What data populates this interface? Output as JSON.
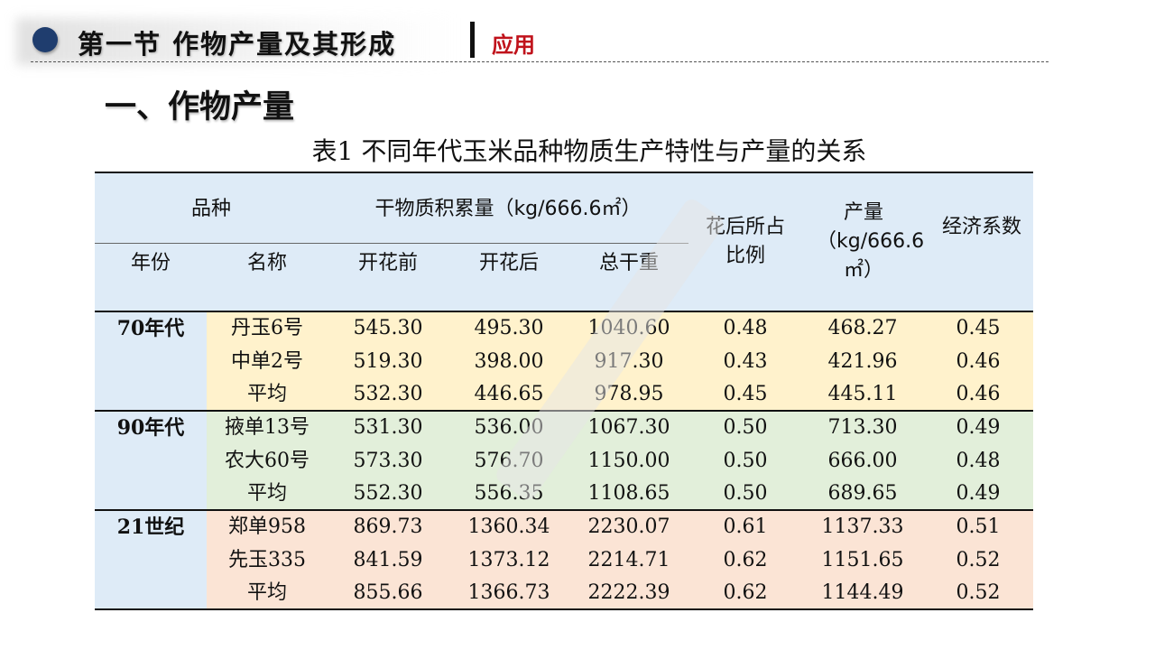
{
  "header": {
    "title": "第一节 作物产量及其形成",
    "subtitle": "应用"
  },
  "section_title": "一、作物产量",
  "table": {
    "caption": "表1  不同年代玉米品种物质生产特性与产量的关系",
    "headers": {
      "variety": "品种",
      "dry_matter": "干物质积累量（kg/666.6㎡）",
      "year": "年份",
      "name": "名称",
      "before": "开花前",
      "after": "开花后",
      "total": "总干重",
      "ratio": "花后所占比例",
      "yield": "产量（kg/666.6㎡）",
      "coef": "经济系数"
    },
    "groups": [
      {
        "period": "70年代",
        "color": "#fff2cc",
        "rows": [
          {
            "name": "丹玉6号",
            "before": "545.30",
            "after": "495.30",
            "total": "1040.60",
            "ratio": "0.48",
            "yield": "468.27",
            "coef": "0.45"
          },
          {
            "name": "中单2号",
            "before": "519.30",
            "after": "398.00",
            "total": "917.30",
            "ratio": "0.43",
            "yield": "421.96",
            "coef": "0.46"
          },
          {
            "name": "平均",
            "before": "532.30",
            "after": "446.65",
            "total": "978.95",
            "ratio": "0.45",
            "yield": "445.11",
            "coef": "0.46"
          }
        ]
      },
      {
        "period": "90年代",
        "color": "#e2efda",
        "rows": [
          {
            "name": "掖单13号",
            "before": "531.30",
            "after": "536.00",
            "total": "1067.30",
            "ratio": "0.50",
            "yield": "713.30",
            "coef": "0.49"
          },
          {
            "name": "农大60号",
            "before": "573.30",
            "after": "576.70",
            "total": "1150.00",
            "ratio": "0.50",
            "yield": "666.00",
            "coef": "0.48"
          },
          {
            "name": "平均",
            "before": "552.30",
            "after": "556.35",
            "total": "1108.65",
            "ratio": "0.50",
            "yield": "689.65",
            "coef": "0.49"
          }
        ]
      },
      {
        "period": "21世纪",
        "color": "#fbe4d5",
        "rows": [
          {
            "name": "郑单958",
            "before": "869.73",
            "after": "1360.34",
            "total": "2230.07",
            "ratio": "0.61",
            "yield": "1137.33",
            "coef": "0.51"
          },
          {
            "name": "先玉335",
            "before": "841.59",
            "after": "1373.12",
            "total": "2214.71",
            "ratio": "0.62",
            "yield": "1151.65",
            "coef": "0.52"
          },
          {
            "name": "平均",
            "before": "855.66",
            "after": "1366.73",
            "total": "2222.39",
            "ratio": "0.62",
            "yield": "1144.49",
            "coef": "0.52"
          }
        ]
      }
    ]
  },
  "colors": {
    "header_bg": "#deebf7",
    "left_col_bg": "#deebf7",
    "accent_red": "#c0121b",
    "dot": "#1f3d6e"
  }
}
